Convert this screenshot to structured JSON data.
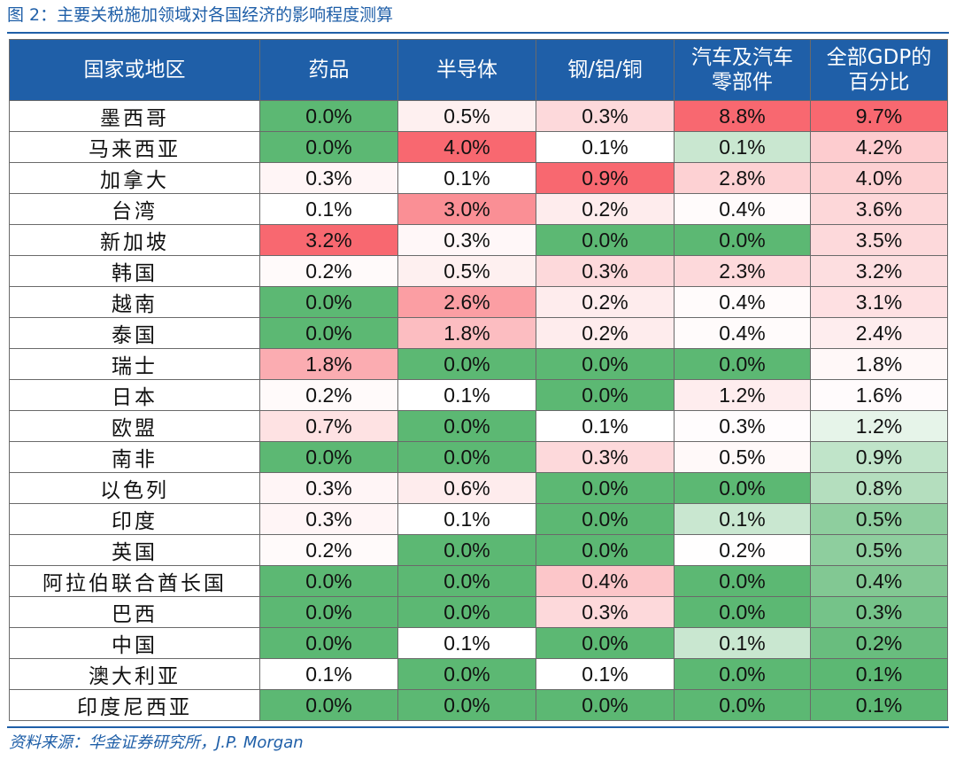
{
  "figure": {
    "title": "图 2：主要关税施加领域对各国经济的影响程度测算",
    "source": "资料来源：华金证券研究所，J.P. Morgan"
  },
  "colors": {
    "header_bg": "#1f5fa8",
    "header_text": "#ffffff",
    "accent_text": "#1f5fa8",
    "heat_min": "#5cb873",
    "heat_mid": "#ffffff",
    "heat_max": "#f86870"
  },
  "chart_data": {
    "type": "table",
    "title": "图 2：主要关税施加领域对各国经济的影响程度测算",
    "columns": [
      {
        "lines": [
          "国家或地区"
        ]
      },
      {
        "lines": [
          "药品"
        ]
      },
      {
        "lines": [
          "半导体"
        ]
      },
      {
        "lines": [
          "钢/铝/铜"
        ]
      },
      {
        "lines": [
          "汽车及汽车",
          "零部件"
        ]
      },
      {
        "lines": [
          "全部GDP的",
          "百分比"
        ]
      }
    ],
    "rows": [
      {
        "country": "墨西哥",
        "values": [
          "0.0%",
          "0.5%",
          "0.3%",
          "8.8%",
          "9.7%"
        ]
      },
      {
        "country": "马来西亚",
        "values": [
          "0.0%",
          "4.0%",
          "0.1%",
          "0.1%",
          "4.2%"
        ]
      },
      {
        "country": "加拿大",
        "values": [
          "0.3%",
          "0.1%",
          "0.9%",
          "2.8%",
          "4.0%"
        ]
      },
      {
        "country": "台湾",
        "values": [
          "0.1%",
          "3.0%",
          "0.2%",
          "0.4%",
          "3.6%"
        ]
      },
      {
        "country": "新加坡",
        "values": [
          "3.2%",
          "0.3%",
          "0.0%",
          "0.0%",
          "3.5%"
        ]
      },
      {
        "country": "韩国",
        "values": [
          "0.2%",
          "0.5%",
          "0.3%",
          "2.3%",
          "3.2%"
        ]
      },
      {
        "country": "越南",
        "values": [
          "0.0%",
          "2.6%",
          "0.2%",
          "0.4%",
          "3.1%"
        ]
      },
      {
        "country": "泰国",
        "values": [
          "0.0%",
          "1.8%",
          "0.2%",
          "0.4%",
          "2.4%"
        ]
      },
      {
        "country": "瑞士",
        "values": [
          "1.8%",
          "0.0%",
          "0.0%",
          "0.0%",
          "1.8%"
        ]
      },
      {
        "country": "日本",
        "values": [
          "0.2%",
          "0.1%",
          "0.0%",
          "1.2%",
          "1.6%"
        ]
      },
      {
        "country": "欧盟",
        "values": [
          "0.7%",
          "0.0%",
          "0.1%",
          "0.3%",
          "1.2%"
        ]
      },
      {
        "country": "南非",
        "values": [
          "0.0%",
          "0.0%",
          "0.3%",
          "0.5%",
          "0.9%"
        ]
      },
      {
        "country": "以色列",
        "values": [
          "0.3%",
          "0.6%",
          "0.0%",
          "0.0%",
          "0.8%"
        ]
      },
      {
        "country": "印度",
        "values": [
          "0.3%",
          "0.1%",
          "0.0%",
          "0.1%",
          "0.5%"
        ]
      },
      {
        "country": "英国",
        "values": [
          "0.2%",
          "0.0%",
          "0.0%",
          "0.2%",
          "0.5%"
        ]
      },
      {
        "country": "阿拉伯联合酋长国",
        "values": [
          "0.0%",
          "0.0%",
          "0.4%",
          "0.0%",
          "0.4%"
        ]
      },
      {
        "country": "巴西",
        "values": [
          "0.0%",
          "0.0%",
          "0.3%",
          "0.0%",
          "0.3%"
        ]
      },
      {
        "country": "中国",
        "values": [
          "0.0%",
          "0.1%",
          "0.0%",
          "0.1%",
          "0.2%"
        ]
      },
      {
        "country": "澳大利亚",
        "values": [
          "0.1%",
          "0.0%",
          "0.1%",
          "0.0%",
          "0.1%"
        ]
      },
      {
        "country": "印度尼西亚",
        "values": [
          "0.0%",
          "0.0%",
          "0.0%",
          "0.0%",
          "0.1%"
        ]
      }
    ]
  }
}
